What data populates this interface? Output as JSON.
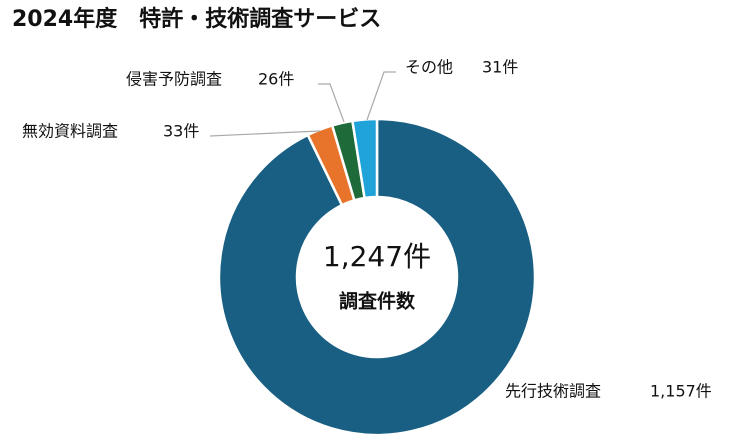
{
  "chart_data": {
    "type": "donut",
    "title": "2024年度　特許・技術調査サービス",
    "categories": [
      "先行技術調査",
      "無効資料調査",
      "侵害予防調査",
      "その他"
    ],
    "values": [
      1157,
      33,
      26,
      31
    ],
    "value_labels": [
      "1,157件",
      "33件",
      "26件",
      "31件"
    ],
    "colors": [
      "#185f83",
      "#e8742c",
      "#1e6b39",
      "#20a3d9"
    ],
    "center_text": "1,247件",
    "center_caption": "調査件数"
  }
}
